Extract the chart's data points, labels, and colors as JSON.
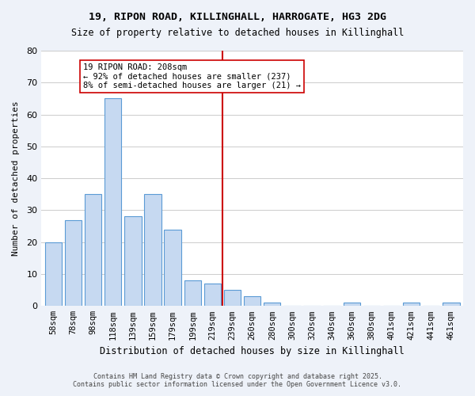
{
  "title1": "19, RIPON ROAD, KILLINGHALL, HARROGATE, HG3 2DG",
  "title2": "Size of property relative to detached houses in Killinghall",
  "xlabel": "Distribution of detached houses by size in Killinghall",
  "ylabel": "Number of detached properties",
  "bar_labels": [
    "58sqm",
    "78sqm",
    "98sqm",
    "118sqm",
    "139sqm",
    "159sqm",
    "179sqm",
    "199sqm",
    "219sqm",
    "239sqm",
    "260sqm",
    "280sqm",
    "300sqm",
    "320sqm",
    "340sqm",
    "360sqm",
    "380sqm",
    "401sqm",
    "421sqm",
    "441sqm",
    "461sqm"
  ],
  "bar_heights": [
    20,
    27,
    35,
    65,
    28,
    35,
    24,
    8,
    7,
    5,
    3,
    1,
    0,
    0,
    0,
    1,
    0,
    0,
    1,
    0,
    1
  ],
  "bar_color": "#c6d9f1",
  "bar_edge_color": "#5b9bd5",
  "vline_x": 8.5,
  "vline_color": "#cc0000",
  "annotation_text": "19 RIPON ROAD: 208sqm\n← 92% of detached houses are smaller (237)\n8% of semi-detached houses are larger (21) →",
  "annotation_box_color": "#ffffff",
  "annotation_box_edge": "#cc0000",
  "ylim": [
    0,
    80
  ],
  "yticks": [
    0,
    10,
    20,
    30,
    40,
    50,
    60,
    70,
    80
  ],
  "footer1": "Contains HM Land Registry data © Crown copyright and database right 2025.",
  "footer2": "Contains public sector information licensed under the Open Government Licence v3.0.",
  "bg_color": "#eef2f9",
  "plot_bg_color": "#ffffff",
  "grid_color": "#cccccc"
}
